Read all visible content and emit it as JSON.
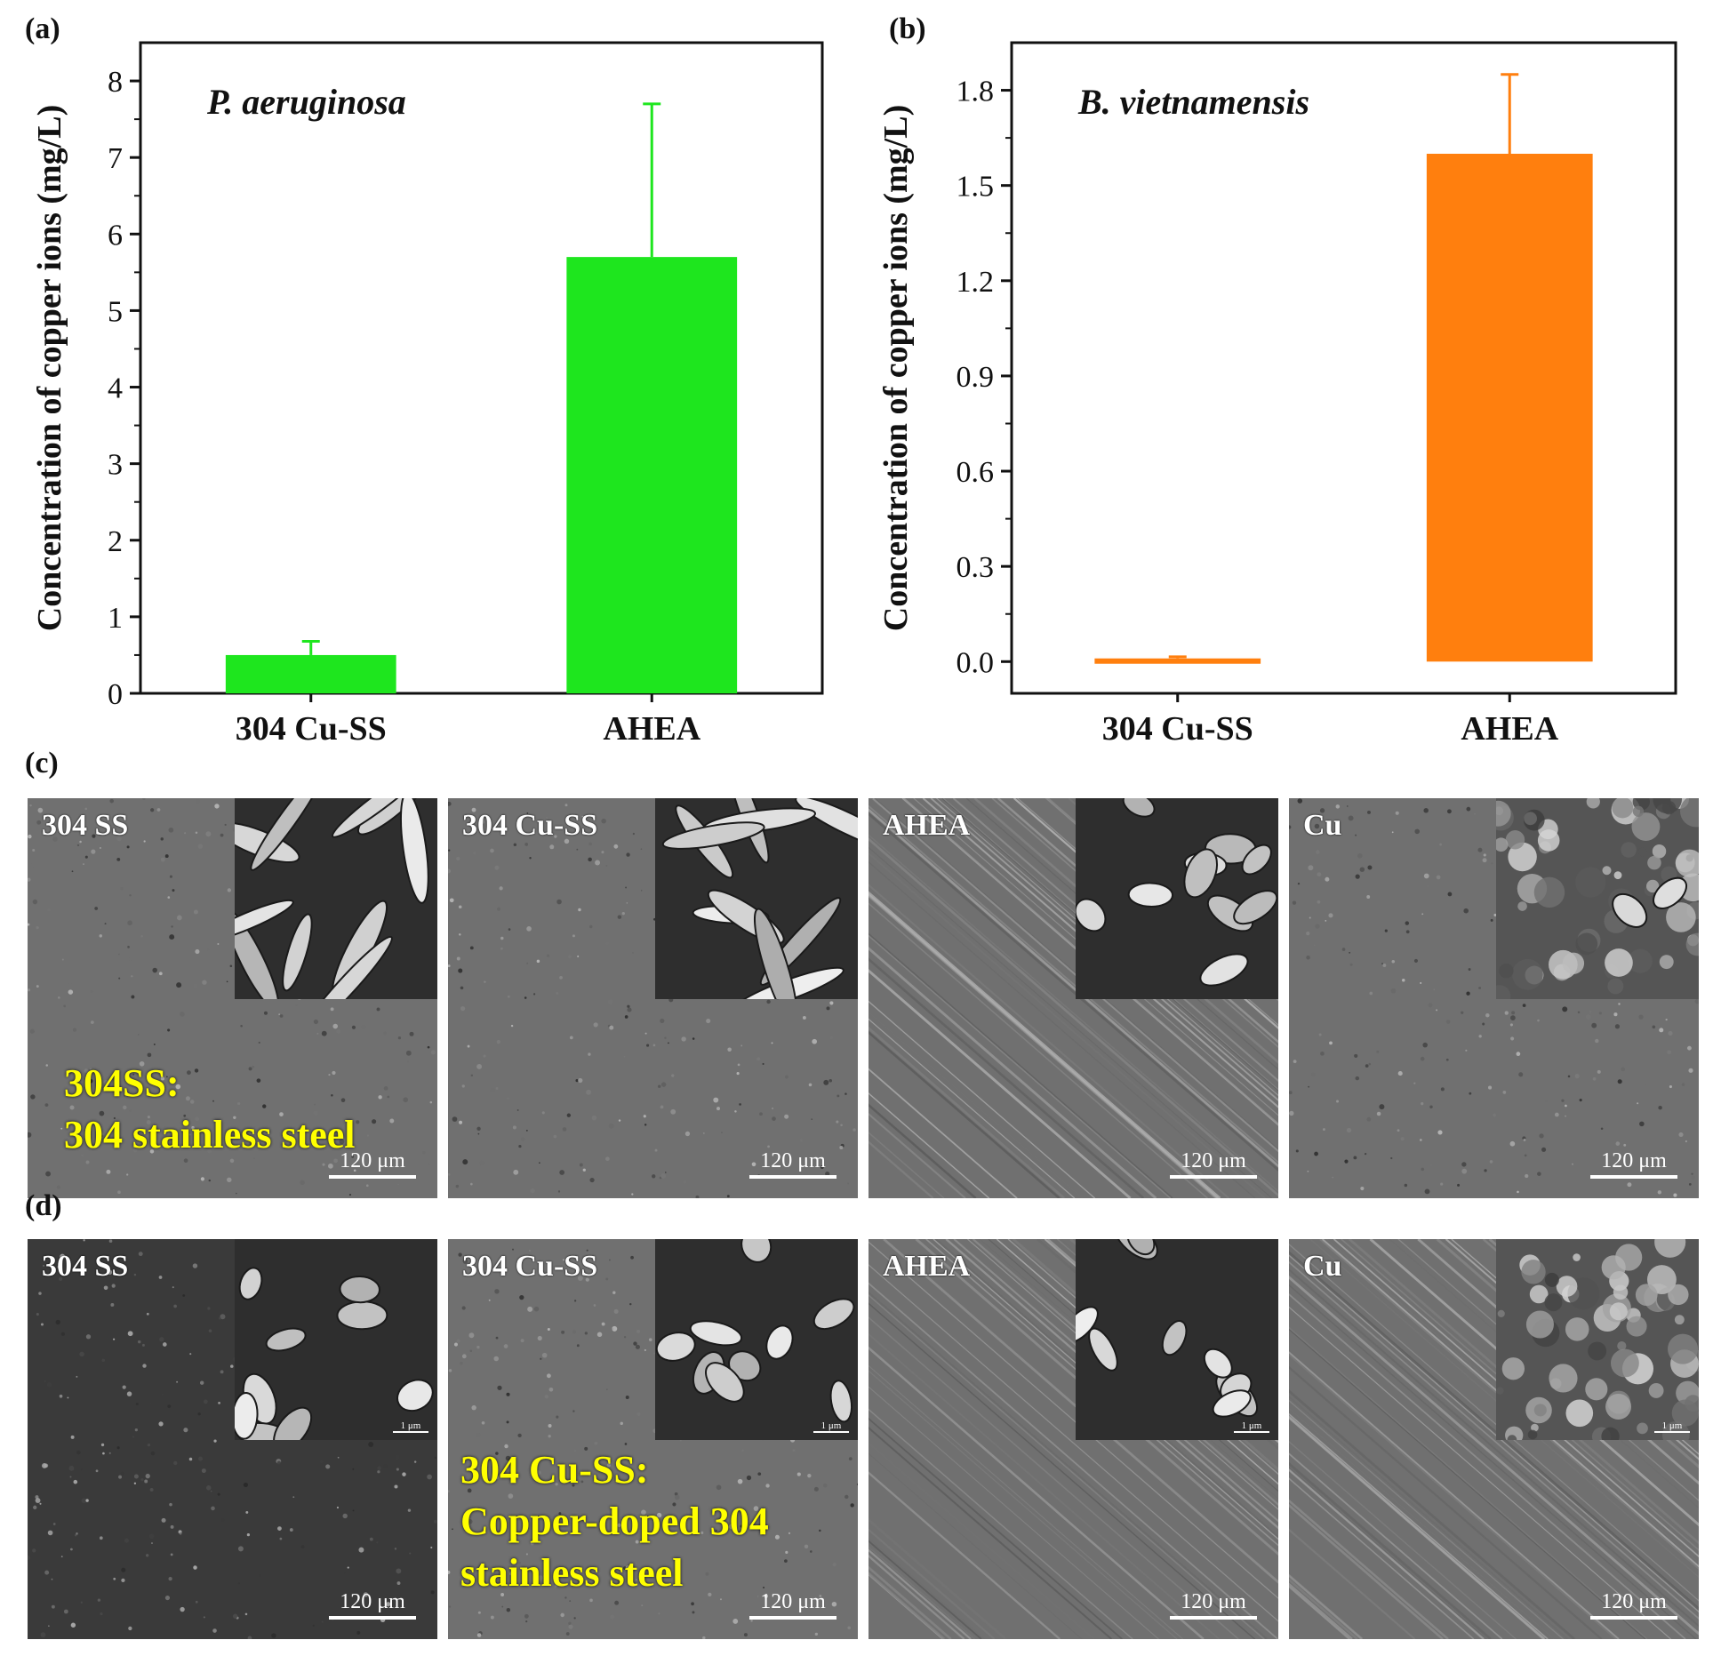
{
  "chart_data": [
    {
      "panel": "(a)",
      "type": "bar",
      "annotation": "P. aeruginosa",
      "ylabel": "Concentration of copper ions (mg/L)",
      "categories": [
        "304 Cu-SS",
        "AHEA"
      ],
      "values": [
        0.5,
        5.7
      ],
      "errors": [
        0.18,
        2.0
      ],
      "ylim": [
        0,
        8.5
      ],
      "yticks": [
        0,
        1,
        2,
        3,
        4,
        5,
        6,
        7,
        8
      ],
      "ytick_labels": [
        "0",
        "1",
        "2",
        "3",
        "4",
        "5",
        "6",
        "7",
        "8"
      ],
      "color": "#1ee61e",
      "grid": false
    },
    {
      "panel": "(b)",
      "type": "bar",
      "annotation": "B. vietnamensis",
      "ylabel": "Concentration of copper ions (mg/L)",
      "categories": [
        "304 Cu-SS",
        "AHEA"
      ],
      "values": [
        0.01,
        1.6
      ],
      "errors": [
        0.005,
        0.25
      ],
      "ylim": [
        -0.1,
        1.95
      ],
      "yticks": [
        0,
        0.3,
        0.6,
        0.9,
        1.2,
        1.5,
        1.8
      ],
      "ytick_labels": [
        "0.0",
        "0.3",
        "0.6",
        "0.9",
        "1.2",
        "1.5",
        "1.8"
      ],
      "color": "#ff7f0e",
      "grid": false
    }
  ],
  "sem": {
    "rows": [
      {
        "panel": "(c)",
        "panels": [
          {
            "label": "304 SS",
            "scale": "120 μm"
          },
          {
            "label": "304 Cu-SS",
            "scale": "120 μm"
          },
          {
            "label": "AHEA",
            "scale": "120 μm"
          },
          {
            "label": "Cu",
            "scale": "120 μm"
          }
        ],
        "note_lines": [
          "304SS:",
          "304 stainless steel"
        ]
      },
      {
        "panel": "(d)",
        "panels": [
          {
            "label": "304 SS",
            "scale": "120 μm",
            "inset_scale": "1 μm"
          },
          {
            "label": "304 Cu-SS",
            "scale": "120 μm",
            "inset_scale": "1 μm"
          },
          {
            "label": "AHEA",
            "scale": "120 μm",
            "inset_scale": "1 μm"
          },
          {
            "label": "Cu",
            "scale": "120 μm",
            "inset_scale": "1 μm"
          }
        ],
        "note_lines": [
          "304 Cu-SS:",
          "Copper-doped 304",
          "stainless steel"
        ]
      }
    ]
  }
}
